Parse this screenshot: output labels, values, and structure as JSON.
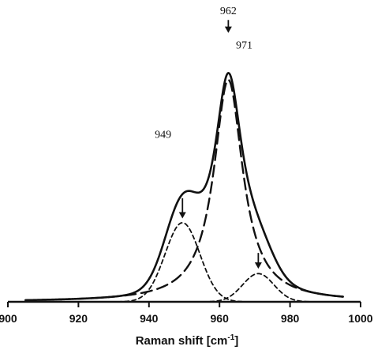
{
  "chart_data": {
    "type": "line",
    "title": "",
    "xlabel": "Raman shift [cm",
    "xlabel_sup": "-1",
    "xlabel_end": "]",
    "ylabel": "",
    "xlim": [
      900,
      1000
    ],
    "ylim": [
      0,
      1.0
    ],
    "x_ticks": [
      900,
      920,
      940,
      960,
      980,
      1000
    ],
    "grid": false,
    "legend": "none",
    "series": [
      {
        "style": "solid",
        "components": [
          {
            "center": 962.5,
            "height": 0.772,
            "hwhm": 5.0,
            "shape": "lorentzian"
          },
          {
            "center": 949.5,
            "height": 0.275,
            "hwhm": 5.8,
            "shape": "gaussian"
          },
          {
            "center": 971.0,
            "height": 0.098,
            "hwhm": 5.2,
            "shape": "gaussian"
          }
        ]
      },
      {
        "style": "long-dash",
        "components": [
          {
            "center": 962.5,
            "height": 0.772,
            "hwhm": 5.0,
            "shape": "lorentzian"
          }
        ]
      },
      {
        "style": "short-dash",
        "components": [
          {
            "center": 949.5,
            "height": 0.275,
            "hwhm": 5.8,
            "shape": "gaussian"
          }
        ]
      },
      {
        "style": "short-dash",
        "components": [
          {
            "center": 971.0,
            "height": 0.098,
            "hwhm": 5.2,
            "shape": "gaussian"
          }
        ]
      }
    ],
    "annotations": [
      {
        "text": "962",
        "x": 962.5,
        "y": 1.0,
        "arrow_to": 0.935
      },
      {
        "text": "971",
        "x": 967.0,
        "y": 0.88
      },
      {
        "text": "949",
        "x": 944.0,
        "y": 0.57
      },
      {
        "arrow_x": 949.5,
        "arrow_y_from": 0.36,
        "arrow_y_to": 0.29
      },
      {
        "arrow_x": 971.0,
        "arrow_y_from": 0.17,
        "arrow_y_to": 0.115
      }
    ]
  }
}
